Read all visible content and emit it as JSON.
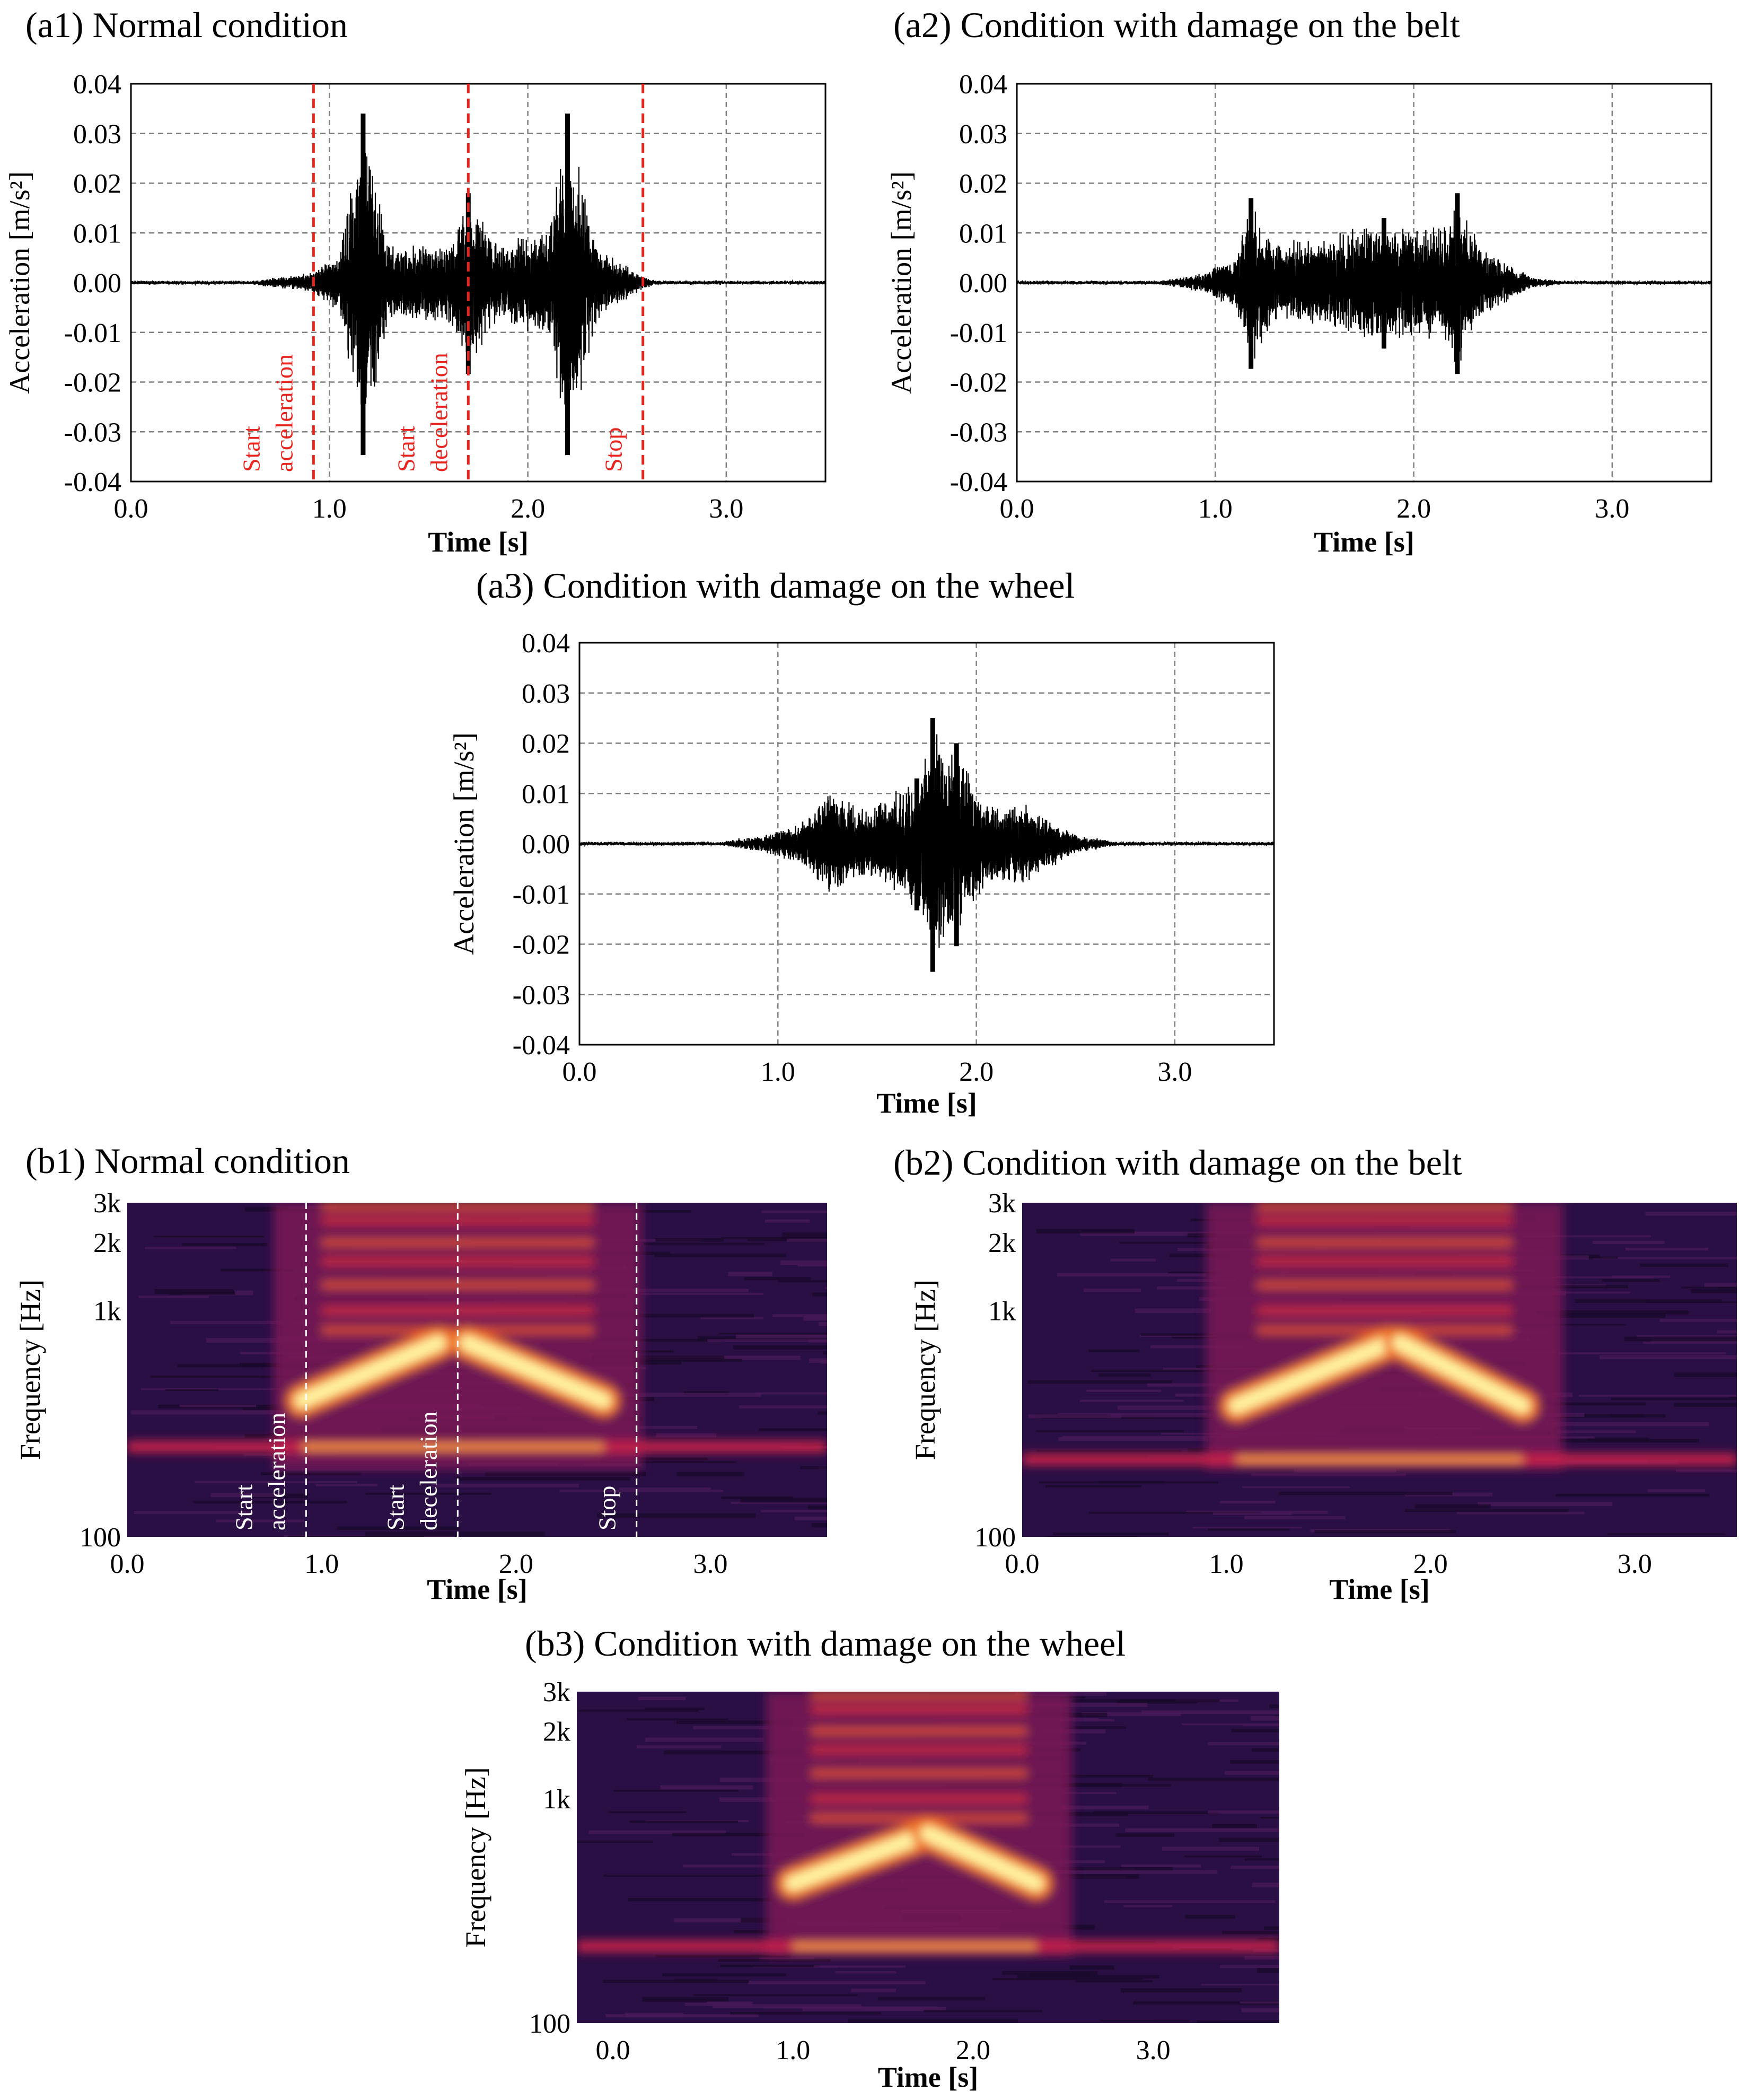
{
  "figure": {
    "panels_title": "Vibration acceleration and spectrogram comparison"
  },
  "colors": {
    "signal": "#000000",
    "event_marker": "#e8241e",
    "event_marker_spec": "#ffffff",
    "grid": "#808080",
    "spec_low": "#1a0a2e",
    "spec_mid": "#c4204a",
    "spec_high": "#fff3a0"
  },
  "chart_data": [
    {
      "id": "a1",
      "type": "line",
      "title": "(a1) Normal condition",
      "xlabel": "Time [s]",
      "ylabel": "Acceleration [m/s²]",
      "xlim": [
        0,
        3.5
      ],
      "ylim": [
        -0.04,
        0.04
      ],
      "xticks": [
        "0.0",
        "1.0",
        "2.0",
        "3.0"
      ],
      "yticks": [
        "0.04",
        "0.03",
        "0.02",
        "0.01",
        "0.00",
        "-0.01",
        "-0.02",
        "-0.03",
        "-0.04"
      ],
      "grid": true,
      "envelope": [
        {
          "t": 0.6,
          "a": 0.0002
        },
        {
          "t": 0.9,
          "a": 0.002
        },
        {
          "t": 1.05,
          "a": 0.006
        },
        {
          "t": 1.17,
          "a": 0.034
        },
        {
          "t": 1.3,
          "a": 0.008
        },
        {
          "t": 1.6,
          "a": 0.008
        },
        {
          "t": 1.7,
          "a": 0.018
        },
        {
          "t": 1.85,
          "a": 0.008
        },
        {
          "t": 2.1,
          "a": 0.011
        },
        {
          "t": 2.2,
          "a": 0.034
        },
        {
          "t": 2.35,
          "a": 0.008
        },
        {
          "t": 2.55,
          "a": 0.002
        },
        {
          "t": 2.65,
          "a": 0.0003
        }
      ],
      "markers": [
        {
          "t": 0.92,
          "label": "Start\nacceleration"
        },
        {
          "t": 1.7,
          "label": "Start\ndeceleration"
        },
        {
          "t": 2.58,
          "label": "Stop"
        }
      ]
    },
    {
      "id": "a2",
      "type": "line",
      "title": "(a2) Condition with damage on the belt",
      "xlabel": "Time [s]",
      "ylabel": "Acceleration [m/s²]",
      "xlim": [
        0,
        3.5
      ],
      "ylim": [
        -0.04,
        0.04
      ],
      "xticks": [
        "0.0",
        "1.0",
        "2.0",
        "3.0"
      ],
      "yticks": [
        "0.04",
        "0.03",
        "0.02",
        "0.01",
        "0.00",
        "-0.01",
        "-0.02",
        "-0.03",
        "-0.04"
      ],
      "grid": true,
      "envelope": [
        {
          "t": 0.7,
          "a": 0.0002
        },
        {
          "t": 0.95,
          "a": 0.002
        },
        {
          "t": 1.1,
          "a": 0.006
        },
        {
          "t": 1.18,
          "a": 0.017
        },
        {
          "t": 1.3,
          "a": 0.008
        },
        {
          "t": 1.6,
          "a": 0.01
        },
        {
          "t": 1.85,
          "a": 0.013
        },
        {
          "t": 2.0,
          "a": 0.011
        },
        {
          "t": 2.15,
          "a": 0.012
        },
        {
          "t": 2.22,
          "a": 0.018
        },
        {
          "t": 2.35,
          "a": 0.007
        },
        {
          "t": 2.6,
          "a": 0.001
        },
        {
          "t": 2.75,
          "a": 0.0003
        }
      ],
      "markers": []
    },
    {
      "id": "a3",
      "type": "line",
      "title": "(a3) Condition with damage on the wheel",
      "xlabel": "Time [s]",
      "ylabel": "Acceleration [m/s²]",
      "xlim": [
        0,
        3.5
      ],
      "ylim": [
        -0.04,
        0.04
      ],
      "xticks": [
        "0.0",
        "1.0",
        "2.0",
        "3.0"
      ],
      "yticks": [
        "0.04",
        "0.03",
        "0.02",
        "0.01",
        "0.00",
        "-0.01",
        "-0.02",
        "-0.03",
        "-0.04"
      ],
      "grid": true,
      "envelope": [
        {
          "t": 0.7,
          "a": 0.0002
        },
        {
          "t": 0.95,
          "a": 0.002
        },
        {
          "t": 1.15,
          "a": 0.005
        },
        {
          "t": 1.25,
          "a": 0.011
        },
        {
          "t": 1.45,
          "a": 0.007
        },
        {
          "t": 1.7,
          "a": 0.013
        },
        {
          "t": 1.78,
          "a": 0.025
        },
        {
          "t": 1.9,
          "a": 0.02
        },
        {
          "t": 2.05,
          "a": 0.008
        },
        {
          "t": 2.25,
          "a": 0.008
        },
        {
          "t": 2.5,
          "a": 0.002
        },
        {
          "t": 2.7,
          "a": 0.0003
        }
      ],
      "markers": []
    },
    {
      "id": "b1",
      "type": "heatmap",
      "title": "(b1) Normal condition",
      "xlabel": "Time [s]",
      "ylabel": "Frequency [Hz]",
      "xlim": [
        0,
        3.6
      ],
      "ylim": [
        100,
        3000
      ],
      "xticks": [
        "0.0",
        "1.0",
        "2.0",
        "3.0"
      ],
      "yticks": [
        "3k",
        "2k",
        "1k",
        "100"
      ],
      "markers": [
        {
          "t": 0.92,
          "label": "Start\nacceleration"
        },
        {
          "t": 1.7,
          "label": "Start\ndeceleration"
        },
        {
          "t": 2.62,
          "label": "Stop"
        }
      ],
      "ridges": [
        {
          "t0": 0.9,
          "f0": 400,
          "t1": 1.6,
          "f1": 720
        },
        {
          "t0": 1.75,
          "f0": 720,
          "t1": 2.45,
          "f1": 400
        }
      ],
      "bands": [
        {
          "f": 250,
          "t0": 0.0,
          "t1": 3.6
        }
      ]
    },
    {
      "id": "b2",
      "type": "heatmap",
      "title": "(b2) Condition with damage on the belt",
      "xlabel": "Time [s]",
      "ylabel": "Frequency [Hz]",
      "xlim": [
        0,
        3.5
      ],
      "ylim": [
        100,
        3000
      ],
      "xticks": [
        "0.0",
        "1.0",
        "2.0",
        "3.0"
      ],
      "yticks": [
        "3k",
        "2k",
        "1k",
        "100"
      ],
      "markers": [],
      "ridges": [
        {
          "t0": 1.05,
          "f0": 380,
          "t1": 1.8,
          "f1": 720
        },
        {
          "t0": 1.85,
          "f0": 720,
          "t1": 2.45,
          "f1": 380
        }
      ],
      "bands": [
        {
          "f": 220,
          "t0": 0.0,
          "t1": 3.5
        }
      ]
    },
    {
      "id": "b3",
      "type": "heatmap",
      "title": "(b3) Condition with damage on the wheel",
      "xlabel": "Time [s]",
      "ylabel": "Frequency [Hz]",
      "xlim": [
        -0.2,
        3.7
      ],
      "ylim": [
        100,
        3000
      ],
      "xticks": [
        "0.0",
        "1.0",
        "2.0",
        "3.0"
      ],
      "yticks": [
        "3k",
        "2k",
        "1k",
        "100"
      ],
      "markers": [],
      "ridges": [
        {
          "t0": 1.0,
          "f0": 420,
          "t1": 1.75,
          "f1": 700
        },
        {
          "t0": 1.75,
          "f0": 700,
          "t1": 2.35,
          "f1": 420
        }
      ],
      "bands": [
        {
          "f": 220,
          "t0": -0.2,
          "t1": 3.7
        }
      ]
    }
  ]
}
